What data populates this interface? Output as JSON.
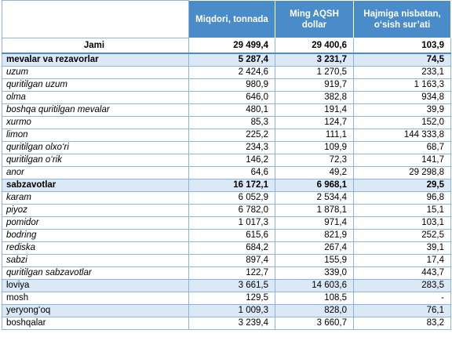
{
  "table": {
    "header": [
      "Miqdori, tonnada",
      "Ming AQSH dollar",
      "Hajmiga nisbatan, o‘sish sur’ati"
    ],
    "rows": [
      [
        "Jami",
        "29 499,4",
        "29 400,6",
        "103,9"
      ],
      [
        "mevalar va rezavorlar",
        "5 287,4",
        "3 231,7",
        "74,5"
      ],
      [
        "uzum",
        "2 424,6",
        "1 270,5",
        "233,1"
      ],
      [
        "quritilgan uzum",
        "980,9",
        "919,7",
        "1 163,3"
      ],
      [
        "olma",
        "646,0",
        "382,8",
        "934,8"
      ],
      [
        "boshqa quritilgan mevalar",
        "480,1",
        "191,4",
        "39,9"
      ],
      [
        "xurmo",
        "85,3",
        "124,7",
        "152,0"
      ],
      [
        "limon",
        "225,2",
        "111,1",
        "144 333,8"
      ],
      [
        "quritilgan olxo‘ri",
        "234,3",
        "109,9",
        "68,7"
      ],
      [
        "quritilgan o‘rik",
        "146,2",
        "72,3",
        "141,7"
      ],
      [
        "anor",
        "64,6",
        "49,2",
        "29 298,8"
      ],
      [
        "sabzavotlar",
        "16 172,1",
        "6 968,1",
        "29,5"
      ],
      [
        "karam",
        "6 052,9",
        "2 534,4",
        "96,8"
      ],
      [
        "piyoz",
        "6 782,0",
        "1 878,1",
        "15,1"
      ],
      [
        "pomidor",
        "1 017,3",
        "971,4",
        "103,1"
      ],
      [
        "bodring",
        "615,6",
        "821,9",
        "252,5"
      ],
      [
        "rediska",
        "684,2",
        "267,4",
        "39,1"
      ],
      [
        "sabzi",
        "897,4",
        "155,9",
        "17,4"
      ],
      [
        "quritilgan sabzavotlar",
        "122,7",
        "339,0",
        "443,7"
      ],
      [
        "loviya",
        "3 661,5",
        "14 603,6",
        "283,5"
      ],
      [
        "mosh",
        "129,5",
        "108,5",
        "-"
      ],
      [
        "yeryong‘oq",
        "1 009,3",
        "828,0",
        "76,1"
      ],
      [
        "boshqalar",
        "3 239,4",
        "3 660,7",
        "83,2"
      ]
    ]
  }
}
